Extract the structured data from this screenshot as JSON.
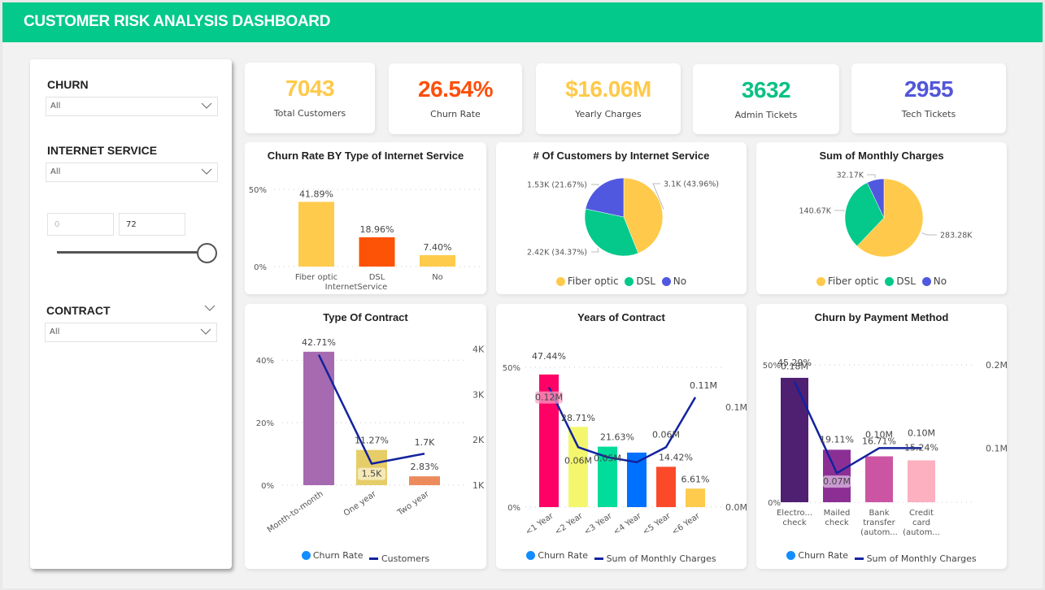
{
  "header": {
    "title": "CUSTOMER RISK ANALYSIS DASHBOARD"
  },
  "filters": {
    "churn": {
      "label": "CHURN",
      "value": "All"
    },
    "internet_service": {
      "label": "INTERNET SERVICE",
      "value": "All"
    },
    "tenure_range": {
      "min_placeholder": "0",
      "max_value": "72",
      "range": [
        0,
        72
      ],
      "selected_max_fraction": 1.0
    },
    "contract": {
      "label": "CONTRACT",
      "value": "All"
    }
  },
  "kpis": [
    {
      "value": "7043",
      "label": "Total Customers",
      "color": "#ffc94a"
    },
    {
      "value": "26.54%",
      "label": "Churn Rate",
      "color": "#fc4f0a"
    },
    {
      "value": "$16.06M",
      "label": "Yearly Charges",
      "color": "#ffc94a"
    },
    {
      "value": "3632",
      "label": "Admin Tickets",
      "color": "#0cc183"
    },
    {
      "value": "2955",
      "label": "Tech Tickets",
      "color": "#5156d9"
    }
  ],
  "colors": {
    "fiber": "#ffca4b",
    "dsl": "#04c98a",
    "no": "#5058df",
    "line": "#12239e",
    "churn_legend": "#118dff"
  },
  "chart_data": [
    {
      "id": "churn_by_internet",
      "type": "bar",
      "title": "Churn Rate BY Type of Internet Service",
      "xlabel": "InternetService",
      "ylabel": "",
      "categories": [
        "Fiber optic",
        "DSL",
        "No"
      ],
      "values": [
        41.89,
        18.96,
        7.4
      ],
      "labels": [
        "41.89%",
        "18.96%",
        "7.40%"
      ],
      "bar_colors": [
        "#ffcb4c",
        "#fd5306",
        "#ffcb4c"
      ],
      "yticks": [
        "0%",
        "50%"
      ],
      "ylim": [
        0,
        50
      ],
      "grid": true
    },
    {
      "id": "customers_by_internet",
      "type": "pie",
      "title": "# Of Customers by Internet Service",
      "categories": [
        "Fiber optic",
        "DSL",
        "No"
      ],
      "values": [
        3096,
        2421,
        1526
      ],
      "labels": [
        "3.1K (43.96%)",
        "2.42K (34.37%)",
        "1.53K (21.67%)"
      ],
      "legend": [
        "Fiber optic",
        "DSL",
        "No"
      ],
      "legend_position": "bottom"
    },
    {
      "id": "monthly_charges_by_internet",
      "type": "pie",
      "title": "Sum of Monthly Charges",
      "categories": [
        "Fiber optic",
        "DSL",
        "No"
      ],
      "values": [
        283280,
        140670,
        32170
      ],
      "labels": [
        "283.28K",
        "140.67K",
        "32.17K"
      ],
      "legend": [
        "Fiber optic",
        "DSL",
        "No"
      ],
      "legend_position": "bottom"
    },
    {
      "id": "type_of_contract",
      "type": "bar",
      "title": "Type Of Contract",
      "categories": [
        "Month-to-month",
        "One year",
        "Two year"
      ],
      "series": [
        {
          "name": "Churn Rate",
          "kind": "bar",
          "values": [
            42.71,
            11.27,
            2.83
          ],
          "labels": [
            "42.71%",
            "11.27%",
            "2.83%"
          ]
        },
        {
          "name": "Customers",
          "kind": "line",
          "values": [
            3875,
            1473,
            1695
          ],
          "labels": [
            "",
            "1.5K",
            "1.7K"
          ]
        }
      ],
      "bar_colors": [
        "#a66ab0",
        "#e6cd68",
        "#ec8b5b"
      ],
      "yticks_left": [
        "0%",
        "20%",
        "40%"
      ],
      "ylim_left": [
        0,
        45
      ],
      "yticks_right": [
        "1K",
        "2K",
        "3K",
        "4K"
      ],
      "ylim_right": [
        1000,
        4100
      ],
      "legend": [
        "Churn Rate",
        "Customers"
      ],
      "legend_position": "bottom",
      "grid": true
    },
    {
      "id": "years_of_contract",
      "type": "bar",
      "title": "Years of Contract",
      "categories": [
        "<1 Year",
        "<2 Year",
        "<3 Year",
        "<4 Year",
        "<5 Year",
        "<6 Year"
      ],
      "series": [
        {
          "name": "Churn Rate",
          "kind": "bar",
          "values": [
            47.44,
            28.71,
            21.63,
            19.5,
            14.42,
            6.61
          ],
          "labels": [
            "47.44%",
            "28.71%",
            "21.63%",
            "",
            "14.42%",
            "6.61%"
          ]
        },
        {
          "name": "Sum of Monthly Charges",
          "kind": "line",
          "values": [
            0.12,
            0.06,
            0.05,
            0.045,
            0.06,
            0.11
          ],
          "labels": [
            "0.12M",
            "0.06M",
            "0.05M",
            "",
            "0.06M",
            "0.11M"
          ]
        }
      ],
      "bar_colors": [
        "#ff0066",
        "#f4f76e",
        "#00dc9a",
        "#0070ff",
        "#fb4a2a",
        "#ffcb4c"
      ],
      "yticks_left": [
        "0%",
        "50%"
      ],
      "ylim_left": [
        0,
        50
      ],
      "yticks_right": [
        "0.0M",
        "0.1M"
      ],
      "ylim_right": [
        0,
        0.14
      ],
      "legend": [
        "Churn Rate",
        "Sum of Monthly Charges"
      ],
      "legend_position": "bottom",
      "grid": true
    },
    {
      "id": "churn_by_payment",
      "type": "bar",
      "title": "Churn by Payment Method",
      "categories": [
        "Electro... check",
        "Mailed check",
        "Bank transfer (autom...",
        "Credit card (autom..."
      ],
      "category_lines": [
        [
          "Electro...",
          "check"
        ],
        [
          "Mailed",
          "check"
        ],
        [
          "Bank",
          "transfer",
          "(autom..."
        ],
        [
          "Credit",
          "card",
          "(autom..."
        ]
      ],
      "series": [
        {
          "name": "Churn Rate",
          "kind": "bar",
          "values": [
            45.29,
            19.11,
            16.71,
            15.24
          ],
          "labels": [
            "45.29%",
            "19.11%",
            "16.71%",
            "15.24%"
          ]
        },
        {
          "name": "Sum of Monthly Charges",
          "kind": "line",
          "values": [
            0.18,
            0.07,
            0.1,
            0.1
          ],
          "labels": [
            "0.18M",
            "0.07M",
            "0.10M",
            "0.10M"
          ]
        }
      ],
      "bar_colors": [
        "#4f1f72",
        "#8c2f95",
        "#cc55a3",
        "#fcb0c0"
      ],
      "yticks_left": [
        "0%",
        "50%"
      ],
      "ylim_left": [
        0,
        50
      ],
      "yticks_right": [
        "0.1M",
        "0.2M"
      ],
      "ylim_right": [
        0.035,
        0.2
      ],
      "legend": [
        "Churn Rate",
        "Sum of Monthly Charges"
      ],
      "legend_position": "bottom",
      "grid": true
    }
  ]
}
